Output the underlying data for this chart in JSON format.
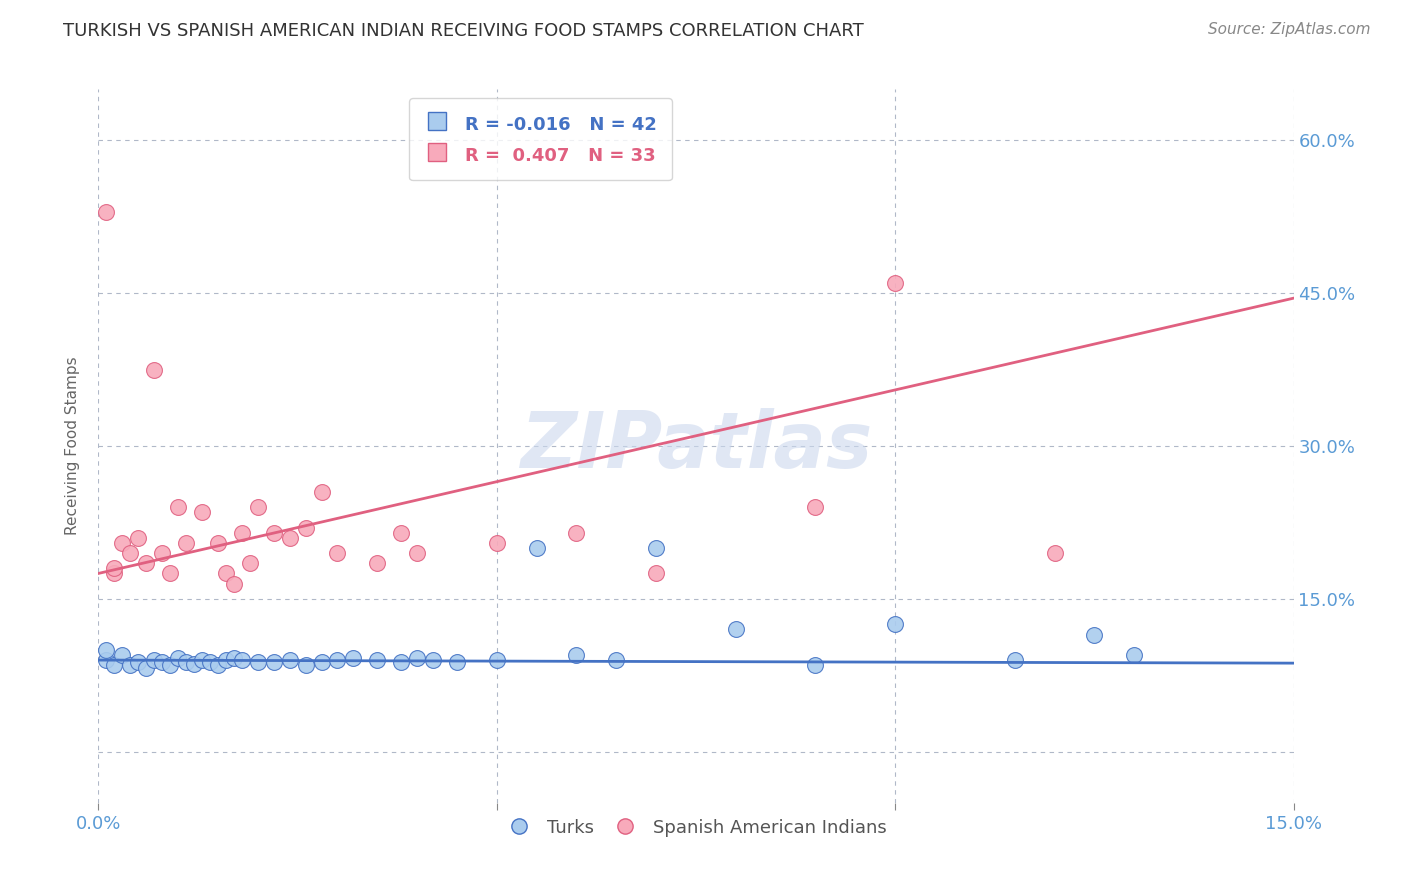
{
  "title": "TURKISH VS SPANISH AMERICAN INDIAN RECEIVING FOOD STAMPS CORRELATION CHART",
  "source": "Source: ZipAtlas.com",
  "ylabel": "Receiving Food Stamps",
  "title_color": "#333333",
  "title_fontsize": 13,
  "source_fontsize": 11,
  "ylabel_fontsize": 11,
  "axis_label_color": "#5b9bd5",
  "background_color": "#ffffff",
  "grid_color": "#b0b8c8",
  "watermark": "ZIPatlas",
  "watermark_color": "#ccd8ee",
  "xlim": [
    0.0,
    0.15
  ],
  "ylim": [
    -0.05,
    0.65
  ],
  "xticks": [
    0.0,
    0.05,
    0.1,
    0.15
  ],
  "xtick_labels": [
    "0.0%",
    "",
    "",
    "15.0%"
  ],
  "yticks": [
    0.0,
    0.15,
    0.3,
    0.45,
    0.6
  ],
  "ytick_labels": [
    "",
    "15.0%",
    "30.0%",
    "45.0%",
    "60.0%"
  ],
  "turks_R": -0.016,
  "turks_N": 42,
  "spanish_R": 0.407,
  "spanish_N": 33,
  "turks_color": "#aaccee",
  "turks_line_color": "#4472c4",
  "spanish_color": "#f8aabb",
  "spanish_line_color": "#e06080",
  "turks_x": [
    0.001,
    0.001,
    0.002,
    0.003,
    0.004,
    0.005,
    0.006,
    0.007,
    0.008,
    0.009,
    0.01,
    0.011,
    0.012,
    0.013,
    0.014,
    0.015,
    0.016,
    0.017,
    0.018,
    0.02,
    0.022,
    0.024,
    0.026,
    0.028,
    0.03,
    0.032,
    0.035,
    0.038,
    0.04,
    0.042,
    0.045,
    0.05,
    0.055,
    0.06,
    0.065,
    0.07,
    0.08,
    0.09,
    0.1,
    0.115,
    0.125,
    0.13
  ],
  "turks_y": [
    0.09,
    0.1,
    0.085,
    0.095,
    0.085,
    0.088,
    0.082,
    0.09,
    0.088,
    0.085,
    0.092,
    0.088,
    0.086,
    0.09,
    0.088,
    0.085,
    0.09,
    0.092,
    0.09,
    0.088,
    0.088,
    0.09,
    0.085,
    0.088,
    0.09,
    0.092,
    0.09,
    0.088,
    0.092,
    0.09,
    0.088,
    0.09,
    0.2,
    0.095,
    0.09,
    0.2,
    0.12,
    0.085,
    0.125,
    0.09,
    0.115,
    0.095
  ],
  "spanish_x": [
    0.001,
    0.002,
    0.003,
    0.004,
    0.005,
    0.006,
    0.007,
    0.008,
    0.009,
    0.01,
    0.011,
    0.013,
    0.015,
    0.016,
    0.017,
    0.018,
    0.019,
    0.02,
    0.022,
    0.024,
    0.026,
    0.028,
    0.03,
    0.035,
    0.038,
    0.04,
    0.05,
    0.06,
    0.07,
    0.09,
    0.1,
    0.12,
    0.002
  ],
  "spanish_y": [
    0.53,
    0.175,
    0.205,
    0.195,
    0.21,
    0.185,
    0.375,
    0.195,
    0.175,
    0.24,
    0.205,
    0.235,
    0.205,
    0.175,
    0.165,
    0.215,
    0.185,
    0.24,
    0.215,
    0.21,
    0.22,
    0.255,
    0.195,
    0.185,
    0.215,
    0.195,
    0.205,
    0.215,
    0.175,
    0.24,
    0.46,
    0.195,
    0.18
  ]
}
